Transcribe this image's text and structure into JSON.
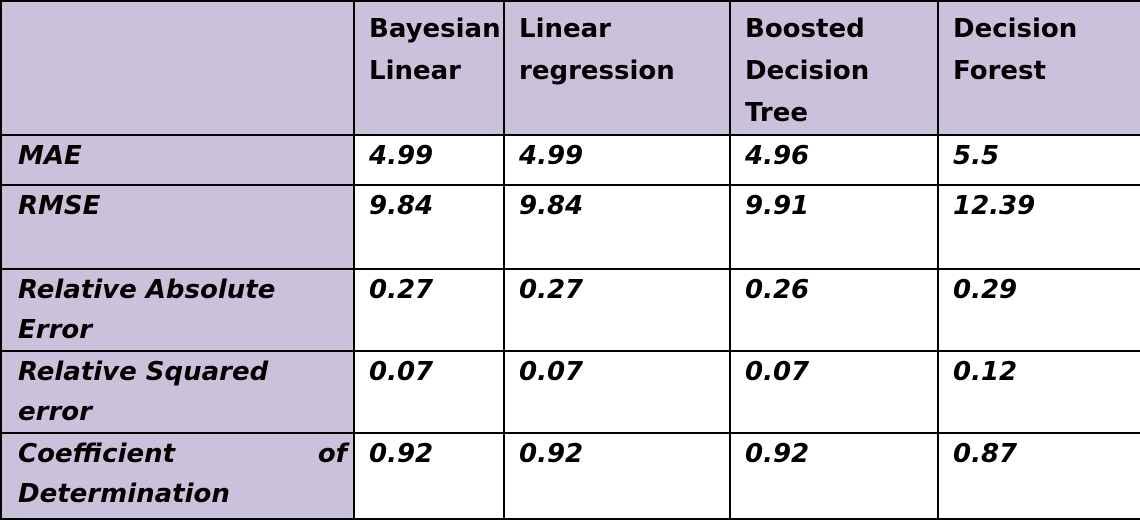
{
  "table": {
    "headers": [
      "",
      "Bayesian Linear",
      "Linear regression",
      "Boosted Decision Tree",
      "Decision Forest"
    ],
    "rows": [
      {
        "metric": "MAE",
        "values": [
          "4.99",
          "4.99",
          "4.96",
          "5.5"
        ]
      },
      {
        "metric": "RMSE",
        "values": [
          "9.84",
          "9.84",
          "9.91",
          "12.39"
        ]
      },
      {
        "metric": "Relative Absolute Error",
        "values": [
          "0.27",
          "0.27",
          "0.26",
          "0.29"
        ]
      },
      {
        "metric": "Relative Squared error",
        "values": [
          "0.07",
          "0.07",
          "0.07",
          "0.12"
        ]
      },
      {
        "metric": "Coefficient of Determination",
        "metric_parts": [
          "Coefficient",
          "of",
          "Determination"
        ],
        "values": [
          "0.92",
          "0.92",
          "0.92",
          "0.87"
        ]
      }
    ]
  },
  "colors": {
    "header_background": "#ccc1da",
    "border": "#000000",
    "text": "#000000"
  }
}
